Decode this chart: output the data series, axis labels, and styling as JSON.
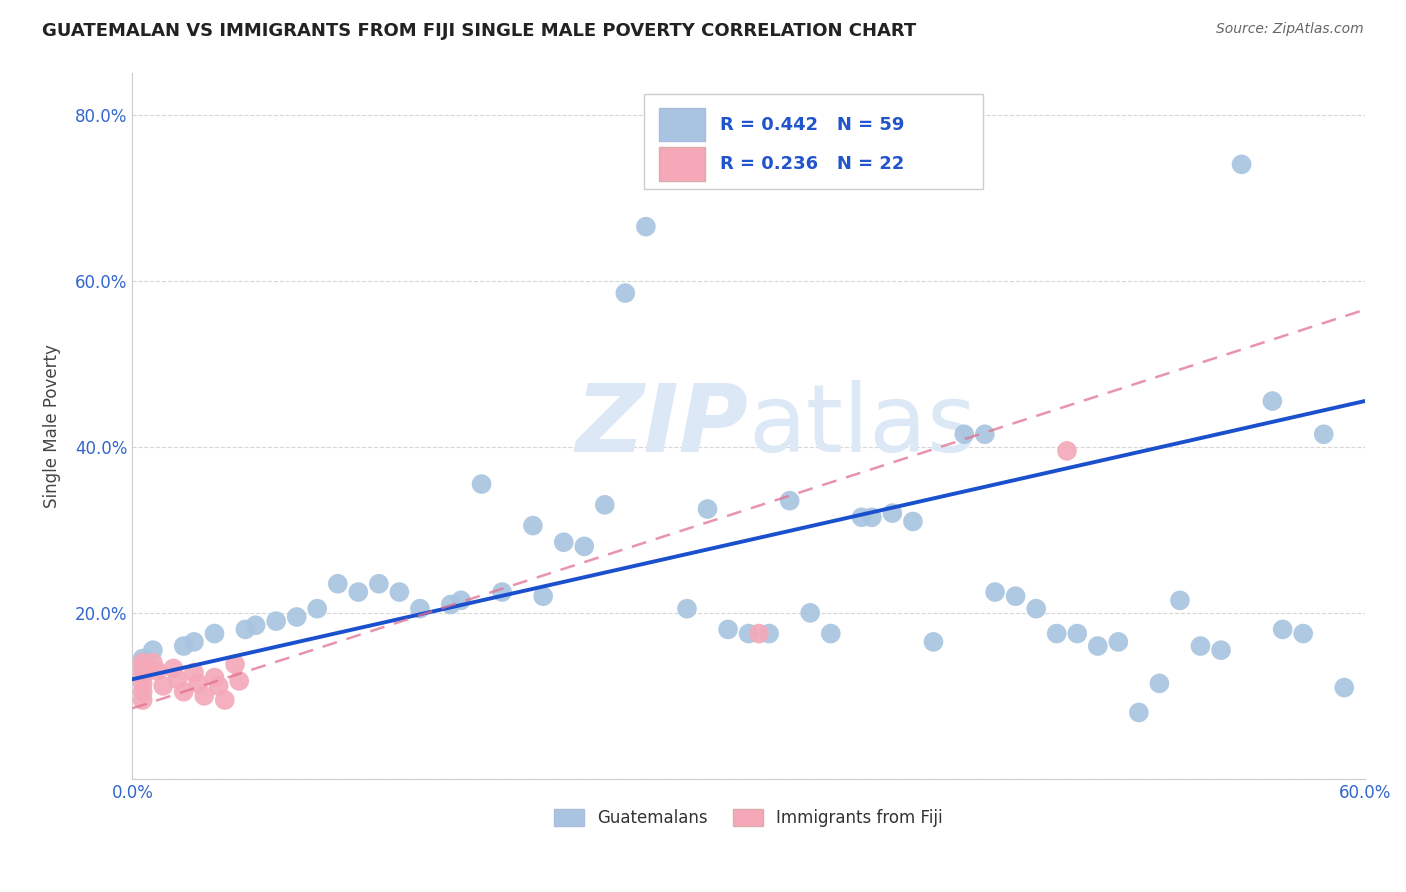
{
  "title": "GUATEMALAN VS IMMIGRANTS FROM FIJI SINGLE MALE POVERTY CORRELATION CHART",
  "source": "Source: ZipAtlas.com",
  "ylabel": "Single Male Poverty",
  "xlim": [
    0.0,
    0.6
  ],
  "ylim": [
    0.0,
    0.85
  ],
  "blue_R": 0.442,
  "blue_N": 59,
  "pink_R": 0.236,
  "pink_N": 22,
  "blue_color": "#a8c4e0",
  "pink_color": "#f4a8b8",
  "blue_line_color": "#1a50cc",
  "pink_line_color": "#e07090",
  "watermark_color": "#dce8f5",
  "blue_scatter_x": [
    0.54,
    0.25,
    0.24,
    0.17,
    0.195,
    0.21,
    0.22,
    0.12,
    0.13,
    0.18,
    0.2,
    0.16,
    0.155,
    0.14,
    0.09,
    0.08,
    0.07,
    0.06,
    0.055,
    0.04,
    0.03,
    0.025,
    0.01,
    0.005,
    0.1,
    0.11,
    0.23,
    0.28,
    0.32,
    0.355,
    0.36,
    0.37,
    0.38,
    0.405,
    0.415,
    0.43,
    0.45,
    0.47,
    0.5,
    0.555,
    0.58,
    0.27,
    0.29,
    0.3,
    0.31,
    0.33,
    0.34,
    0.39,
    0.42,
    0.44,
    0.46,
    0.48,
    0.49,
    0.51,
    0.52,
    0.53,
    0.56,
    0.57,
    0.59
  ],
  "blue_scatter_y": [
    0.74,
    0.665,
    0.585,
    0.355,
    0.305,
    0.285,
    0.28,
    0.235,
    0.225,
    0.225,
    0.22,
    0.215,
    0.21,
    0.205,
    0.205,
    0.195,
    0.19,
    0.185,
    0.18,
    0.175,
    0.165,
    0.16,
    0.155,
    0.145,
    0.235,
    0.225,
    0.33,
    0.325,
    0.335,
    0.315,
    0.315,
    0.32,
    0.31,
    0.415,
    0.415,
    0.22,
    0.175,
    0.16,
    0.115,
    0.455,
    0.415,
    0.205,
    0.18,
    0.175,
    0.175,
    0.2,
    0.175,
    0.165,
    0.225,
    0.205,
    0.175,
    0.165,
    0.08,
    0.215,
    0.16,
    0.155,
    0.18,
    0.175,
    0.11
  ],
  "pink_scatter_x": [
    0.005,
    0.005,
    0.005,
    0.005,
    0.005,
    0.005,
    0.01,
    0.012,
    0.015,
    0.02,
    0.022,
    0.025,
    0.03,
    0.032,
    0.035,
    0.04,
    0.042,
    0.045,
    0.05,
    0.052,
    0.455,
    0.305
  ],
  "pink_scatter_y": [
    0.14,
    0.133,
    0.125,
    0.115,
    0.105,
    0.095,
    0.14,
    0.13,
    0.112,
    0.133,
    0.12,
    0.105,
    0.128,
    0.115,
    0.1,
    0.122,
    0.112,
    0.095,
    0.138,
    0.118,
    0.395,
    0.175
  ],
  "blue_line_x": [
    0.0,
    0.6
  ],
  "blue_line_y": [
    0.12,
    0.455
  ],
  "pink_line_x": [
    0.0,
    0.6
  ],
  "pink_line_y": [
    0.085,
    0.565
  ]
}
